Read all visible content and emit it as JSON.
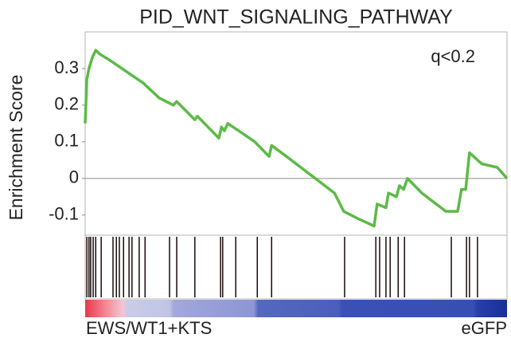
{
  "chart_data": {
    "type": "line",
    "title": "PID_WNT_SIGNALING_PATHWAY",
    "y_label": "Enrichment Score",
    "annotation": "q<0.2",
    "left_label": "EWS/WT1+KTS",
    "right_label": "eGFP",
    "color": "#5cbb46",
    "hit_color": "#1a0a0a",
    "zero_line": true,
    "xlim": [
      0,
      100
    ],
    "ylim": [
      -0.155,
      0.4
    ],
    "yticks": [
      -0.1,
      0,
      0.1,
      0.2,
      0.3
    ],
    "x": [
      0,
      0.4,
      0.9,
      1.7,
      2.5,
      3.4,
      6.2,
      10.0,
      13.8,
      17.5,
      20.9,
      21.7,
      26.0,
      26.6,
      31.7,
      32.3,
      33.0,
      33.8,
      36.4,
      40.2,
      43.6,
      44.2,
      47.7,
      53.4,
      59.1,
      61.3,
      64.7,
      68.5,
      69.2,
      71.3,
      71.9,
      73.8,
      74.5,
      75.5,
      76.4,
      79.8,
      85.5,
      88.3,
      89.2,
      90.2,
      91.1,
      94.0,
      97.7,
      100
    ],
    "values": [
      0.15,
      0.27,
      0.3,
      0.33,
      0.35,
      0.34,
      0.32,
      0.29,
      0.26,
      0.22,
      0.2,
      0.21,
      0.16,
      0.17,
      0.11,
      0.14,
      0.13,
      0.15,
      0.13,
      0.1,
      0.06,
      0.09,
      0.06,
      0.01,
      -0.04,
      -0.09,
      -0.11,
      -0.13,
      -0.07,
      -0.08,
      -0.04,
      -0.05,
      -0.02,
      -0.03,
      0.0,
      -0.04,
      -0.09,
      -0.09,
      -0.03,
      -0.03,
      0.07,
      0.04,
      0.03,
      0.0
    ],
    "hits": [
      0.4,
      0.9,
      1.3,
      1.9,
      2.5,
      3.8,
      6.6,
      7.4,
      8.1,
      9.1,
      10.4,
      11.1,
      12.8,
      14.2,
      20.0,
      21.7,
      26.0,
      32.1,
      32.6,
      35.7,
      40.8,
      44.2,
      61.5,
      68.9,
      69.8,
      71.3,
      72.3,
      74.2,
      75.7,
      86.8,
      90.4,
      91.1,
      93.0
    ]
  }
}
